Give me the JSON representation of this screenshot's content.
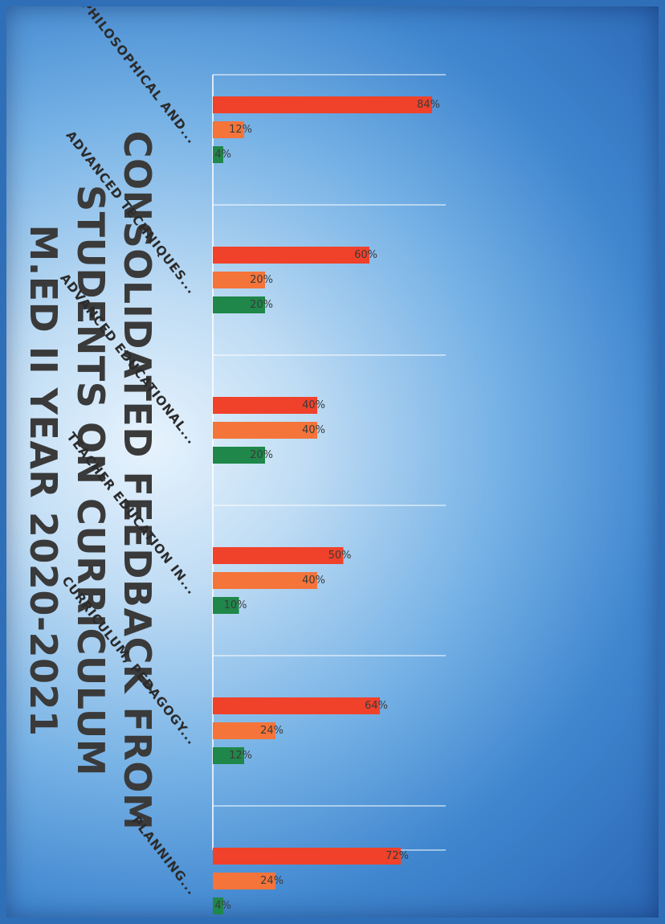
{
  "chart_data": {
    "type": "bar",
    "title_lines": [
      "CONSOLIDATED FEEDBACK FROM",
      "STUDENTS ON CURRICULUM",
      "M.ED II YEAR 2020-2021"
    ],
    "categories": [
      "PHILOSOPHICAL AND...",
      "ADVANCED TECHNIQUES...",
      "ADVANCED EDUCATIONAL...",
      "TEACHER EDUCATION IN...",
      "CURRICULUM, PEDAGOGY...",
      "PLANNING..."
    ],
    "series": [
      {
        "values": [
          84,
          60,
          40,
          50,
          64,
          72
        ],
        "labels": [
          "84%",
          "60%",
          "40%",
          "50%",
          "64%",
          "72%"
        ]
      },
      {
        "values": [
          12,
          20,
          40,
          40,
          24,
          24
        ],
        "labels": [
          "12%",
          "20%",
          "40%",
          "40%",
          "24%",
          "24%"
        ]
      },
      {
        "values": [
          4,
          20,
          20,
          10,
          12,
          4
        ],
        "labels": [
          "4%",
          "20%",
          "20%",
          "10%",
          "12%",
          "4%"
        ]
      }
    ],
    "ylim": [
      0,
      100
    ],
    "grid": false,
    "legend": "none",
    "colors": [
      "#f0412a",
      "#f4743a",
      "#1f8749"
    ],
    "axis_color": "#ffffff"
  }
}
